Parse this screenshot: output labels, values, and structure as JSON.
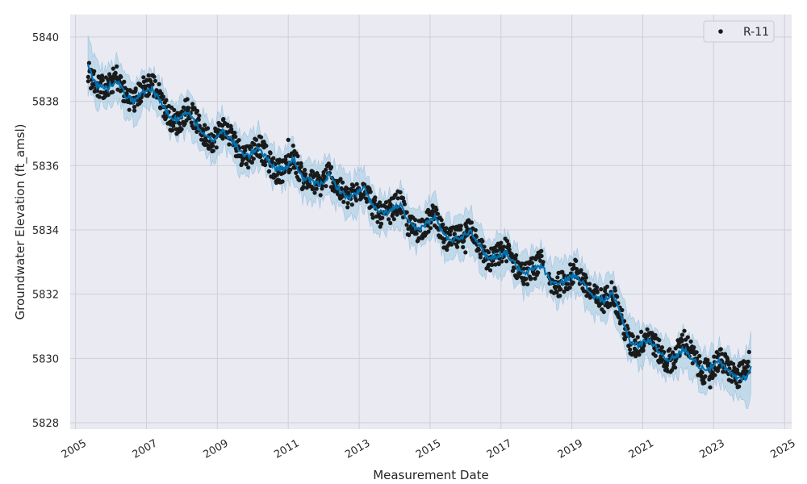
{
  "chart_data": {
    "type": "line",
    "title": "",
    "xlabel": "Measurement Date",
    "ylabel": "Groundwater Elevation (ft_amsl)",
    "xlim": [
      2004.85,
      2025.2
    ],
    "ylim": [
      5827.8,
      5840.7
    ],
    "x_ticks": [
      "2005",
      "2007",
      "2009",
      "2011",
      "2013",
      "2015",
      "2017",
      "2019",
      "2021",
      "2023",
      "2025"
    ],
    "y_ticks": [
      "5828",
      "5830",
      "5832",
      "5834",
      "5836",
      "5838",
      "5840"
    ],
    "grid": true,
    "legend": {
      "position": "top-right",
      "entries": [
        "R-11"
      ]
    },
    "colors": {
      "plot_background": "#eaeaf2",
      "grid": "#cfcfd8",
      "observed_points": "#1a1a1a",
      "forecast_line": "#0072b2",
      "uncertainty_band": "#9ecae1"
    },
    "series": [
      {
        "name": "R-11",
        "kind": "observed",
        "x": [
          2005.35,
          2005.6,
          2005.9,
          2006.15,
          2006.4,
          2006.65,
          2006.9,
          2007.15,
          2007.4,
          2007.65,
          2007.9,
          2008.15,
          2008.4,
          2008.65,
          2008.9,
          2009.15,
          2009.4,
          2009.65,
          2009.9,
          2010.15,
          2010.4,
          2010.65,
          2010.9,
          2011.15,
          2011.4,
          2011.65,
          2011.9,
          2012.15,
          2012.4,
          2012.65,
          2012.9,
          2013.15,
          2013.4,
          2013.65,
          2013.9,
          2014.15,
          2014.4,
          2014.65,
          2014.9,
          2015.15,
          2015.4,
          2015.65,
          2015.9,
          2016.15,
          2016.4,
          2016.65,
          2016.9,
          2017.15,
          2017.4,
          2017.65,
          2017.9,
          2018.15,
          2018.4,
          2018.65,
          2018.9,
          2019.15,
          2019.4,
          2019.65,
          2019.9,
          2020.15,
          2020.4,
          2020.65,
          2020.9,
          2021.15,
          2021.4,
          2021.65,
          2021.9,
          2022.15,
          2022.4,
          2022.65,
          2022.9,
          2023.15,
          2023.4,
          2023.65,
          2023.9
        ],
        "y": [
          5838.9,
          5838.5,
          5838.4,
          5838.8,
          5838.2,
          5838.0,
          5838.4,
          5838.6,
          5838.1,
          5837.5,
          5837.3,
          5837.8,
          5837.4,
          5836.9,
          5836.8,
          5837.2,
          5836.9,
          5836.4,
          5836.3,
          5836.7,
          5836.2,
          5835.8,
          5835.9,
          5836.3,
          5835.6,
          5835.5,
          5835.4,
          5835.8,
          5835.3,
          5835.0,
          5835.1,
          5835.4,
          5834.7,
          5834.4,
          5834.6,
          5834.9,
          5834.1,
          5834.0,
          5834.2,
          5834.5,
          5833.7,
          5833.7,
          5833.8,
          5834.1,
          5833.5,
          5833.0,
          5833.2,
          5833.4,
          5832.9,
          5832.6,
          5832.8,
          5833.0,
          5832.3,
          5832.3,
          5832.5,
          5832.8,
          5832.2,
          5831.9,
          5831.8,
          5832.1,
          5831.2,
          5830.4,
          5830.4,
          5830.8,
          5830.3,
          5829.9,
          5830.0,
          5830.6,
          5830.1,
          5829.6,
          5829.6,
          5830.0,
          5829.7,
          5829.4,
          5829.6
        ]
      },
      {
        "kind": "forecast",
        "x": [
          2005.35,
          2005.6,
          2005.9,
          2006.15,
          2006.4,
          2006.65,
          2006.9,
          2007.15,
          2007.4,
          2007.65,
          2007.9,
          2008.15,
          2008.4,
          2008.65,
          2008.9,
          2009.15,
          2009.4,
          2009.65,
          2009.9,
          2010.15,
          2010.4,
          2010.65,
          2010.9,
          2011.15,
          2011.4,
          2011.65,
          2011.9,
          2012.15,
          2012.4,
          2012.65,
          2012.9,
          2013.15,
          2013.4,
          2013.65,
          2013.9,
          2014.15,
          2014.4,
          2014.65,
          2014.9,
          2015.15,
          2015.4,
          2015.65,
          2015.9,
          2016.15,
          2016.4,
          2016.65,
          2016.9,
          2017.15,
          2017.4,
          2017.65,
          2017.9,
          2018.15,
          2018.4,
          2018.65,
          2018.9,
          2019.15,
          2019.4,
          2019.65,
          2019.9,
          2020.15,
          2020.4,
          2020.65,
          2020.9,
          2021.15,
          2021.4,
          2021.65,
          2021.9,
          2022.15,
          2022.4,
          2022.65,
          2022.9,
          2023.15,
          2023.4,
          2023.65,
          2023.9,
          2024.05
        ],
        "y": [
          5839.1,
          5838.5,
          5838.4,
          5838.7,
          5838.2,
          5838.0,
          5838.3,
          5838.4,
          5838.0,
          5837.5,
          5837.4,
          5837.7,
          5837.3,
          5836.9,
          5836.8,
          5837.1,
          5836.8,
          5836.4,
          5836.3,
          5836.6,
          5836.2,
          5835.9,
          5835.9,
          5836.2,
          5835.6,
          5835.5,
          5835.4,
          5835.7,
          5835.3,
          5835.0,
          5835.1,
          5835.3,
          5834.7,
          5834.5,
          5834.6,
          5834.8,
          5834.2,
          5834.0,
          5834.2,
          5834.4,
          5833.8,
          5833.7,
          5833.8,
          5834.0,
          5833.5,
          5833.1,
          5833.2,
          5833.3,
          5832.9,
          5832.6,
          5832.8,
          5832.9,
          5832.4,
          5832.3,
          5832.5,
          5832.6,
          5832.2,
          5831.9,
          5831.8,
          5832.0,
          5831.3,
          5830.5,
          5830.4,
          5830.6,
          5830.3,
          5830.0,
          5830.0,
          5830.3,
          5830.0,
          5829.7,
          5829.7,
          5829.9,
          5829.6,
          5829.4,
          5829.4,
          5829.7
        ],
        "band_halfwidth": 0.6
      }
    ]
  }
}
